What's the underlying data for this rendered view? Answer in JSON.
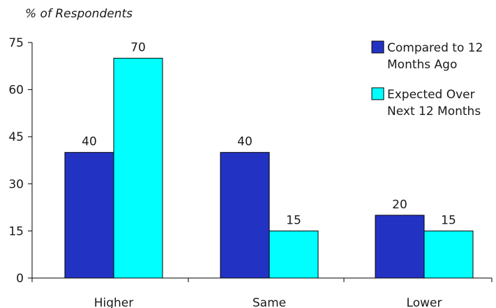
{
  "chart_data": {
    "type": "bar",
    "ylabel": "% of Respondents",
    "xlabel": "",
    "ylim": [
      0,
      75
    ],
    "yticks": [
      0,
      15,
      30,
      45,
      60,
      75
    ],
    "categories": [
      "Higher",
      "Same",
      "Lower"
    ],
    "series": [
      {
        "name": "Compared to 12 Months Ago",
        "legend_lines": [
          "Compared to 12",
          "Months Ago"
        ],
        "values": [
          40,
          40,
          20
        ],
        "color": "#2233c4"
      },
      {
        "name": "Expected Over Next 12 Months",
        "legend_lines": [
          "Expected Over",
          "Next 12 Months"
        ],
        "values": [
          70,
          15,
          15
        ],
        "color": "#00ffff"
      }
    ],
    "legend_position": "top-right",
    "grid": false
  }
}
